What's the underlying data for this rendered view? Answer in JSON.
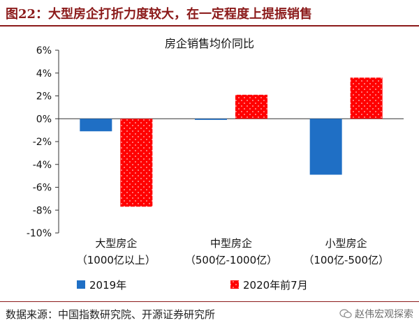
{
  "figure": {
    "title": "图22：大型房企打折力度较大，在一定程度上提振销售",
    "source": "数据来源：中国指数研究院、开源证券研究所",
    "watermark": "赵伟宏观探索",
    "watermark_icon": "wechat-icon"
  },
  "chart_data": {
    "type": "bar",
    "title": "房企销售均价同比",
    "categories": [
      [
        "大型房企",
        "（1000亿以上）"
      ],
      [
        "中型房企",
        "（500亿-1000亿）"
      ],
      [
        "小型房企",
        "（100亿-500亿）"
      ]
    ],
    "series": [
      {
        "name": "2019年",
        "values": [
          -1.1,
          -0.1,
          -4.9
        ],
        "color": "#1f6fc5",
        "pattern": "solid"
      },
      {
        "name": "2020年前7月",
        "values": [
          -7.7,
          2.1,
          3.6
        ],
        "color": "#ff0000",
        "pattern": "dots"
      }
    ],
    "ylim": [
      -10,
      6
    ],
    "yticks": [
      6,
      4,
      2,
      0,
      -2,
      -4,
      -6,
      -8,
      -10
    ],
    "ytick_format": "percent",
    "legend_position": "bottom",
    "grid": false
  }
}
